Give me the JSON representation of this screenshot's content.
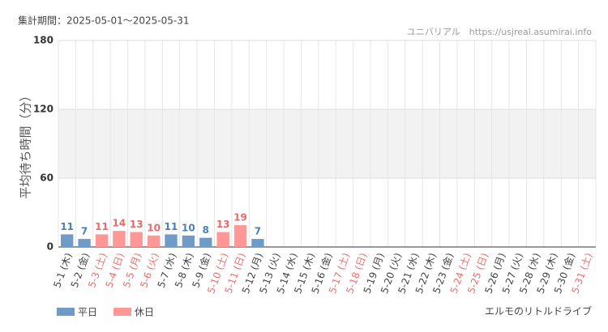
{
  "header": {
    "period": "集計期間：2025-05-01～2025-05-31",
    "source": "ユニバリアル　https://usjreal.asumirai.info",
    "attraction": "エルモのリトルドライブ"
  },
  "chart_data": {
    "type": "bar",
    "y_label": "平均待ち時間（分）",
    "categories": [
      "5-1 (木)",
      "5-2 (金)",
      "5-3 (土)",
      "5-4 (日)",
      "5-5 (月)",
      "5-6 (火)",
      "5-7 (水)",
      "5-8 (木)",
      "5-9 (金)",
      "5-10 (土)",
      "5-11 (日)",
      "5-12 (月)",
      "5-13 (火)",
      "5-14 (水)",
      "5-15 (木)",
      "5-16 (金)",
      "5-17 (土)",
      "5-18 (日)",
      "5-19 (月)",
      "5-20 (火)",
      "5-21 (水)",
      "5-22 (木)",
      "5-23 (金)",
      "5-24 (土)",
      "5-25 (日)",
      "5-26 (月)",
      "5-27 (火)",
      "5-28 (水)",
      "5-29 (木)",
      "5-30 (金)",
      "5-31 (土)"
    ],
    "category_colors": [
      "#444",
      "#444",
      "#e97070",
      "#e97070",
      "#e97070",
      "#e97070",
      "#444",
      "#444",
      "#444",
      "#e97070",
      "#e97070",
      "#444",
      "#444",
      "#444",
      "#444",
      "#444",
      "#e97070",
      "#e97070",
      "#444",
      "#444",
      "#444",
      "#444",
      "#444",
      "#e97070",
      "#e97070",
      "#444",
      "#444",
      "#444",
      "#444",
      "#444",
      "#e97070"
    ],
    "series": [
      {
        "name": "平日",
        "color": "#6f9bc8",
        "label_color": "#4a7fb5",
        "values": [
          11,
          7,
          null,
          null,
          null,
          null,
          11,
          10,
          8,
          null,
          null,
          7,
          null,
          null,
          null,
          null,
          null,
          null,
          null,
          null,
          null,
          null,
          null,
          null,
          null,
          null,
          null,
          null,
          null,
          null,
          null
        ]
      },
      {
        "name": "休日",
        "color": "#ff9797",
        "label_color": "#e86a6a",
        "values": [
          null,
          null,
          11,
          14,
          13,
          10,
          null,
          null,
          null,
          13,
          19,
          null,
          null,
          null,
          null,
          null,
          null,
          null,
          null,
          null,
          null,
          null,
          null,
          null,
          null,
          null,
          null,
          null,
          null,
          null,
          null
        ]
      }
    ],
    "ylim": [
      0,
      180
    ],
    "yticks": [
      0,
      60,
      120,
      180
    ],
    "grid": true
  }
}
